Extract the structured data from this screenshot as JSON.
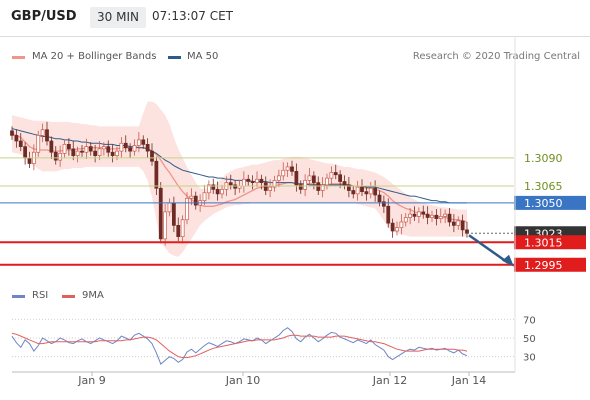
{
  "header": {
    "pair": "GBP/USD",
    "timeframe": "30 MIN",
    "time": "07:13:07 CET"
  },
  "legend": {
    "ma20_label": "MA 20 + Bollinger Bands",
    "ma50_label": "MA 50",
    "research": "Research © 2020 Trading Central",
    "rsi_label": "RSI",
    "ma9_label": "9MA"
  },
  "colors": {
    "band_fill": "#fde3df",
    "ma20": "#f1948a",
    "ma50": "#2e5c8a",
    "candle_up": "#c85a4e",
    "candle_down": "#6e2a24",
    "resistance": "#c5d38a",
    "pivot": "#3a75c4",
    "support": "#e11c1c",
    "price_tag": "#333333",
    "rsi": "#6c86c6",
    "ma9": "#e06060",
    "arrow": "#2e5c8a"
  },
  "chart_data": [
    {
      "type": "line",
      "title": "",
      "x_labels": [
        "Jan 9",
        "Jan 10",
        "Jan 12",
        "Jan 14"
      ],
      "ylim": [
        1.2985,
        1.3145
      ],
      "y_levels": [
        {
          "value": 1.309,
          "label": "1.3090",
          "role": "resistance"
        },
        {
          "value": 1.3065,
          "label": "1.3065",
          "role": "resistance"
        },
        {
          "value": 1.305,
          "label": "1.3050",
          "role": "pivot"
        },
        {
          "value": 1.3023,
          "label": "1.3023",
          "role": "last-price"
        },
        {
          "value": 1.3015,
          "label": "1.3015",
          "role": "support"
        },
        {
          "value": 1.2995,
          "label": "1.2995",
          "role": "support"
        }
      ],
      "close": [
        1.311,
        1.3105,
        1.31,
        1.309,
        1.3085,
        1.3095,
        1.311,
        1.3115,
        1.3105,
        1.3095,
        1.3088,
        1.3094,
        1.3102,
        1.3098,
        1.3092,
        1.3096,
        1.3095,
        1.31,
        1.3096,
        1.3092,
        1.3098,
        1.31,
        1.3095,
        1.3092,
        1.3096,
        1.3103,
        1.3099,
        1.3096,
        1.3101,
        1.3106,
        1.3102,
        1.3096,
        1.3087,
        1.3063,
        1.3018,
        1.3042,
        1.305,
        1.303,
        1.302,
        1.3035,
        1.3054,
        1.3056,
        1.3048,
        1.3052,
        1.3059,
        1.3066,
        1.3062,
        1.3058,
        1.3062,
        1.3068,
        1.3066,
        1.3063,
        1.3065,
        1.3071,
        1.3069,
        1.3068,
        1.3071,
        1.3068,
        1.3061,
        1.3064,
        1.307,
        1.3074,
        1.3079,
        1.3082,
        1.3078,
        1.3066,
        1.3062,
        1.307,
        1.3074,
        1.3068,
        1.3061,
        1.3066,
        1.3072,
        1.3077,
        1.3075,
        1.3069,
        1.3066,
        1.3061,
        1.3058,
        1.3064,
        1.306,
        1.3058,
        1.3063,
        1.3057,
        1.3051,
        1.3047,
        1.3032,
        1.3025,
        1.3028,
        1.3033,
        1.3037,
        1.304,
        1.3038,
        1.3042,
        1.304,
        1.3037,
        1.3039,
        1.3036,
        1.3038,
        1.304,
        1.3033,
        1.303,
        1.3034,
        1.3026,
        1.3023
      ],
      "ma20": [
        1.3112,
        1.311,
        1.3108,
        1.3104,
        1.31,
        1.3098,
        1.3097,
        1.3097,
        1.3097,
        1.3096,
        1.3096,
        1.3096,
        1.3097,
        1.3097,
        1.3097,
        1.3098,
        1.3098,
        1.3099,
        1.3099,
        1.3099,
        1.3099,
        1.3099,
        1.3098,
        1.3098,
        1.3098,
        1.3099,
        1.3099,
        1.3099,
        1.3099,
        1.3099,
        1.3099,
        1.3098,
        1.3096,
        1.3093,
        1.3088,
        1.3082,
        1.3077,
        1.3071,
        1.3065,
        1.306,
        1.3056,
        1.3053,
        1.305,
        1.3048,
        1.3047,
        1.3047,
        1.3047,
        1.3048,
        1.3049,
        1.3051,
        1.3052,
        1.3053,
        1.3055,
        1.3057,
        1.3059,
        1.3061,
        1.3063,
        1.3064,
        1.3064,
        1.3064,
        1.3065,
        1.3066,
        1.3067,
        1.3068,
        1.3068,
        1.3067,
        1.3066,
        1.3067,
        1.3067,
        1.3067,
        1.3066,
        1.3066,
        1.3066,
        1.3067,
        1.3067,
        1.3067,
        1.3067,
        1.3066,
        1.3065,
        1.3065,
        1.3064,
        1.3063,
        1.3063,
        1.3062,
        1.3061,
        1.3059,
        1.3056,
        1.3052,
        1.3049,
        1.3047,
        1.3045,
        1.3044,
        1.3042,
        1.3041,
        1.304,
        1.3039,
        1.3038,
        1.3038,
        1.3037,
        1.3037,
        1.3036,
        1.3035,
        1.3035,
        1.3034,
        1.3033
      ],
      "ma50": [
        1.3116,
        1.3115,
        1.3114,
        1.3113,
        1.3112,
        1.3111,
        1.311,
        1.3109,
        1.3109,
        1.3108,
        1.3107,
        1.3107,
        1.3106,
        1.3106,
        1.3105,
        1.3105,
        1.3104,
        1.3104,
        1.3103,
        1.3103,
        1.3103,
        1.3102,
        1.3102,
        1.3102,
        1.3101,
        1.3101,
        1.3101,
        1.31,
        1.31,
        1.3099,
        1.3099,
        1.3098,
        1.3096,
        1.3094,
        1.3091,
        1.3088,
        1.3086,
        1.3083,
        1.3081,
        1.3079,
        1.3078,
        1.3077,
        1.3076,
        1.3075,
        1.3074,
        1.3073,
        1.3073,
        1.3072,
        1.3072,
        1.3071,
        1.3071,
        1.307,
        1.307,
        1.307,
        1.307,
        1.3069,
        1.3069,
        1.3069,
        1.3069,
        1.3068,
        1.3068,
        1.3068,
        1.3068,
        1.3068,
        1.3068,
        1.3067,
        1.3067,
        1.3067,
        1.3066,
        1.3066,
        1.3066,
        1.3066,
        1.3066,
        1.3066,
        1.3066,
        1.3066,
        1.3066,
        1.3066,
        1.3065,
        1.3065,
        1.3065,
        1.3064,
        1.3064,
        1.3064,
        1.3063,
        1.3062,
        1.3061,
        1.306,
        1.3059,
        1.3058,
        1.3057,
        1.3056,
        1.3056,
        1.3055,
        1.3054,
        1.3053,
        1.3052,
        1.3052,
        1.3051,
        1.3051,
        1.305,
        1.305,
        1.305,
        1.305,
        1.305
      ],
      "band_upper": [
        1.3128,
        1.3127,
        1.3126,
        1.3125,
        1.3124,
        1.3123,
        1.3123,
        1.3123,
        1.3123,
        1.3122,
        1.3122,
        1.3122,
        1.3122,
        1.3122,
        1.3121,
        1.3121,
        1.312,
        1.312,
        1.3119,
        1.3119,
        1.3118,
        1.3118,
        1.3118,
        1.3118,
        1.3118,
        1.3118,
        1.3118,
        1.3118,
        1.3118,
        1.3118,
        1.313,
        1.314,
        1.314,
        1.3138,
        1.3133,
        1.3128,
        1.312,
        1.3108,
        1.3098,
        1.309,
        1.3082,
        1.3075,
        1.3068,
        1.3063,
        1.3062,
        1.3063,
        1.3065,
        1.3068,
        1.3072,
        1.3076,
        1.3078,
        1.308,
        1.3081,
        1.3082,
        1.3083,
        1.3084,
        1.3084,
        1.3085,
        1.3086,
        1.3087,
        1.3088,
        1.3088,
        1.3089,
        1.309,
        1.3091,
        1.3091,
        1.3091,
        1.309,
        1.3089,
        1.3088,
        1.3087,
        1.3086,
        1.3085,
        1.3085,
        1.3084,
        1.3083,
        1.3082,
        1.3082,
        1.3081,
        1.308,
        1.308,
        1.3079,
        1.3078,
        1.3077,
        1.3075,
        1.3073,
        1.307,
        1.3067,
        1.3064,
        1.3061,
        1.3058,
        1.3055,
        1.3053,
        1.3051,
        1.305,
        1.3049,
        1.3048,
        1.3047,
        1.3046,
        1.3046,
        1.3045,
        1.3045,
        1.3044,
        1.3044,
        1.3044
      ],
      "band_lower": [
        1.3095,
        1.3094,
        1.3093,
        1.309,
        1.3086,
        1.3083,
        1.308,
        1.3078,
        1.3078,
        1.3078,
        1.3078,
        1.3079,
        1.308,
        1.308,
        1.3081,
        1.3081,
        1.3081,
        1.3082,
        1.3082,
        1.3082,
        1.3082,
        1.3082,
        1.3082,
        1.3082,
        1.3082,
        1.3082,
        1.3082,
        1.3082,
        1.3082,
        1.3082,
        1.3078,
        1.307,
        1.3055,
        1.3035,
        1.3015,
        1.301,
        1.3005,
        1.3003,
        1.3002,
        1.3006,
        1.3012,
        1.3018,
        1.3024,
        1.303,
        1.3034,
        1.3037,
        1.304,
        1.3042,
        1.3044,
        1.3046,
        1.3047,
        1.3048,
        1.3048,
        1.3049,
        1.3049,
        1.305,
        1.305,
        1.305,
        1.305,
        1.305,
        1.305,
        1.305,
        1.305,
        1.305,
        1.305,
        1.305,
        1.305,
        1.305,
        1.305,
        1.305,
        1.305,
        1.305,
        1.305,
        1.305,
        1.305,
        1.305,
        1.305,
        1.305,
        1.305,
        1.3049,
        1.3048,
        1.3047,
        1.3046,
        1.3045,
        1.304,
        1.3034,
        1.3028,
        1.3025,
        1.3023,
        1.3022,
        1.3021,
        1.302,
        1.302,
        1.302,
        1.302,
        1.302,
        1.302,
        1.302,
        1.302,
        1.302,
        1.302,
        1.302,
        1.302,
        1.302,
        1.302
      ],
      "forecast_arrow": {
        "from_value": 1.3023,
        "to_value": 1.2995
      }
    },
    {
      "type": "line",
      "title": "",
      "series_labels": [
        "RSI",
        "9MA"
      ],
      "ylim": [
        20,
        80
      ],
      "y_ticks": [
        30,
        50,
        70
      ],
      "rsi": [
        52,
        45,
        40,
        48,
        44,
        36,
        42,
        50,
        47,
        44,
        46,
        50,
        48,
        45,
        44,
        47,
        49,
        46,
        44,
        47,
        50,
        48,
        46,
        44,
        47,
        52,
        50,
        48,
        53,
        55,
        52,
        49,
        44,
        34,
        22,
        26,
        30,
        28,
        24,
        27,
        35,
        38,
        34,
        38,
        42,
        45,
        43,
        41,
        44,
        47,
        46,
        44,
        46,
        49,
        48,
        47,
        50,
        48,
        44,
        47,
        50,
        53,
        58,
        61,
        57,
        49,
        46,
        51,
        54,
        50,
        46,
        49,
        53,
        56,
        55,
        51,
        49,
        47,
        45,
        48,
        46,
        44,
        48,
        43,
        40,
        37,
        30,
        27,
        30,
        33,
        36,
        38,
        37,
        40,
        39,
        38,
        39,
        37,
        38,
        39,
        36,
        34,
        37,
        33,
        31
      ],
      "ma9": [
        55,
        54,
        52,
        50,
        48,
        46,
        44,
        44,
        45,
        46,
        46,
        46,
        46,
        46,
        46,
        46,
        46,
        46,
        46,
        46,
        47,
        47,
        47,
        47,
        47,
        47,
        48,
        48,
        49,
        50,
        51,
        51,
        50,
        48,
        44,
        40,
        36,
        33,
        30,
        29,
        29,
        30,
        31,
        33,
        35,
        37,
        39,
        40,
        41,
        42,
        43,
        44,
        45,
        46,
        47,
        47,
        48,
        48,
        48,
        48,
        48,
        49,
        50,
        52,
        53,
        53,
        52,
        52,
        52,
        52,
        51,
        51,
        51,
        51,
        52,
        52,
        52,
        51,
        50,
        49,
        48,
        47,
        46,
        46,
        45,
        44,
        42,
        40,
        38,
        37,
        36,
        36,
        36,
        36,
        37,
        38,
        38,
        38,
        38,
        38,
        38,
        38,
        37,
        37,
        36
      ]
    }
  ]
}
